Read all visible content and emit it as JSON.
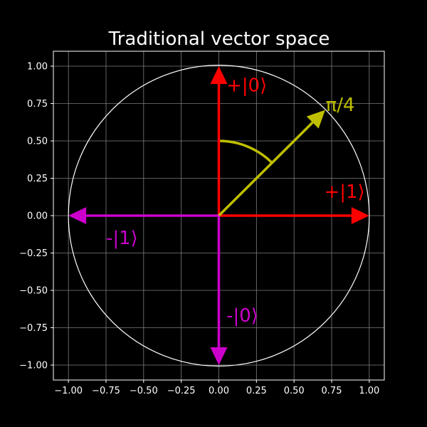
{
  "chart_data": {
    "type": "line",
    "title": "Traditional vector space",
    "xlabel": "",
    "ylabel": "",
    "xlim": [
      -1.1,
      1.1
    ],
    "ylim": [
      -1.1,
      1.1
    ],
    "grid": true,
    "x_ticks": [
      -1.0,
      -0.75,
      -0.5,
      -0.25,
      0.0,
      0.25,
      0.5,
      0.75,
      1.0
    ],
    "y_ticks": [
      -1.0,
      -0.75,
      -0.5,
      -0.25,
      0.0,
      0.25,
      0.5,
      0.75,
      1.0
    ],
    "x_tick_labels": [
      "−1.00",
      "−0.75",
      "−0.50",
      "−0.25",
      "0.00",
      "0.25",
      "0.50",
      "0.75",
      "1.00"
    ],
    "y_tick_labels": [
      "−1.00",
      "−0.75",
      "−0.50",
      "−0.25",
      "0.00",
      "0.25",
      "0.50",
      "0.75",
      "1.00"
    ],
    "unit_circle": {
      "radius": 1.0,
      "color": "#ffffff"
    },
    "vectors": [
      {
        "label": "+|0⟩",
        "from": [
          0,
          0
        ],
        "to": [
          0,
          1
        ],
        "color": "#ff0000",
        "label_at": [
          0.05,
          0.83
        ]
      },
      {
        "label": "+|1⟩",
        "from": [
          0,
          0
        ],
        "to": [
          1,
          0
        ],
        "color": "#ff0000",
        "label_at": [
          0.7,
          0.12
        ]
      },
      {
        "label": "-|1⟩",
        "from": [
          0,
          0
        ],
        "to": [
          -1,
          0
        ],
        "color": "#cc00cc",
        "label_at": [
          -0.75,
          -0.19
        ]
      },
      {
        "label": "-|0⟩",
        "from": [
          0,
          0
        ],
        "to": [
          0,
          -1
        ],
        "color": "#cc00cc",
        "label_at": [
          0.05,
          -0.71
        ]
      },
      {
        "label": "π/4",
        "from": [
          0,
          0
        ],
        "to": [
          0.7071,
          0.7071
        ],
        "color": "#bfbf00",
        "label_at": [
          0.71,
          0.7
        ]
      }
    ],
    "angle_arc": {
      "radius": 0.5,
      "from_deg": 45,
      "to_deg": 90,
      "color": "#bfbf00"
    }
  }
}
